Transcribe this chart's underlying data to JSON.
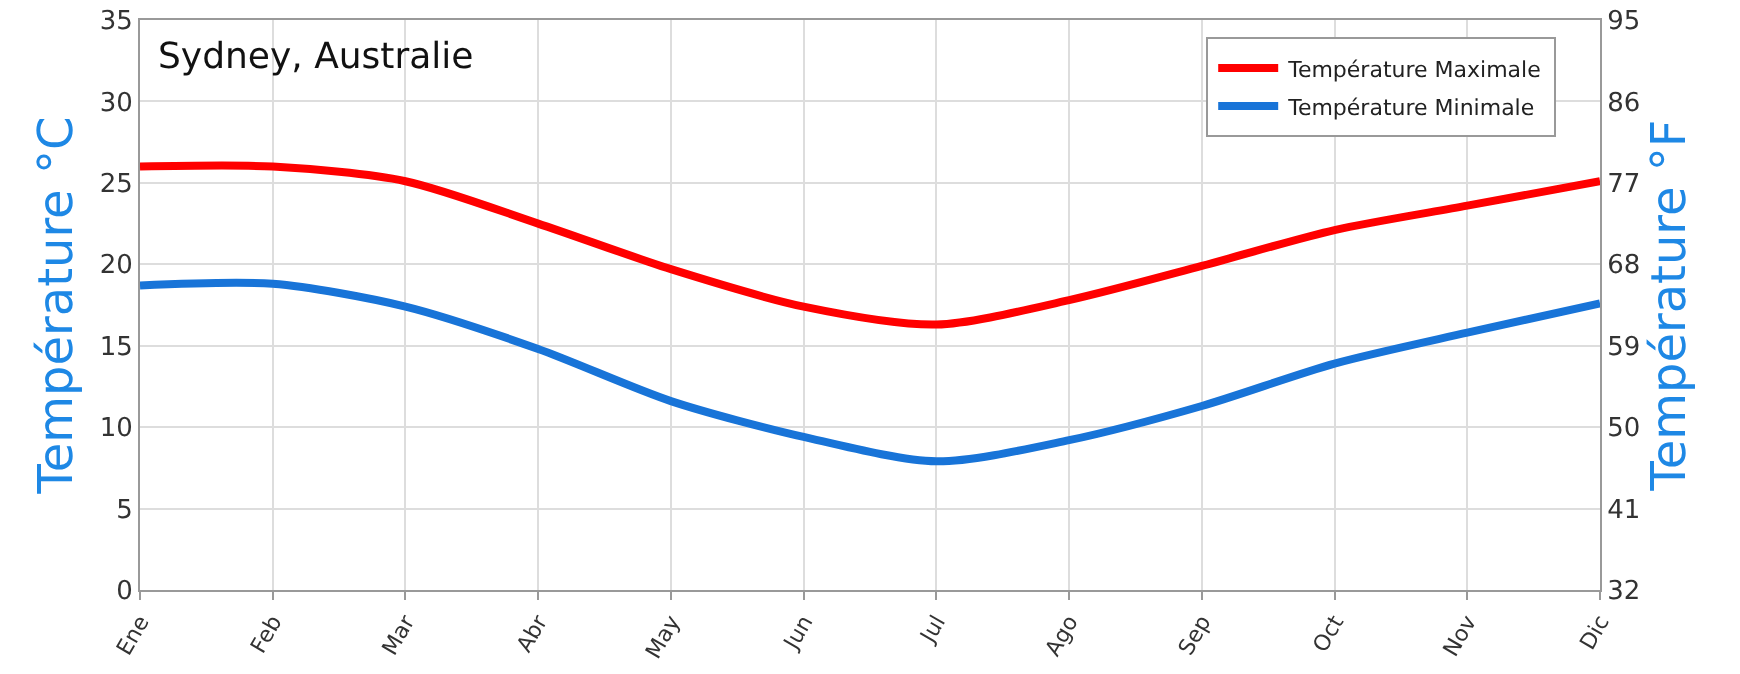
{
  "chart_data": {
    "type": "line",
    "title": "Sydney, Australie",
    "ylabel": "Température °C",
    "y2label": "Température °F",
    "categories": [
      "Ene",
      "Feb",
      "Mar",
      "Abr",
      "May",
      "Jun",
      "Jul",
      "Ago",
      "Sep",
      "Oct",
      "Nov",
      "Dic"
    ],
    "series": [
      {
        "name": "Température Maximale",
        "color": "#ff0000",
        "values": [
          26.0,
          26.0,
          25.1,
          22.5,
          19.7,
          17.4,
          16.3,
          17.8,
          19.9,
          22.1,
          23.6,
          25.1
        ]
      },
      {
        "name": "Température Minimale",
        "color": "#1874d8",
        "values": [
          18.7,
          18.8,
          17.4,
          14.8,
          11.6,
          9.4,
          7.9,
          9.2,
          11.3,
          13.9,
          15.8,
          17.6
        ]
      }
    ],
    "ylim": [
      0,
      35
    ],
    "yticks": [
      0,
      5,
      10,
      15,
      20,
      25,
      30,
      35
    ],
    "y2lim": [
      32,
      95
    ],
    "y2ticks": [
      32,
      41,
      50,
      59,
      68,
      77,
      86,
      95
    ],
    "grid": true,
    "legend": "top right",
    "marker": "none",
    "line_style": "solid"
  }
}
